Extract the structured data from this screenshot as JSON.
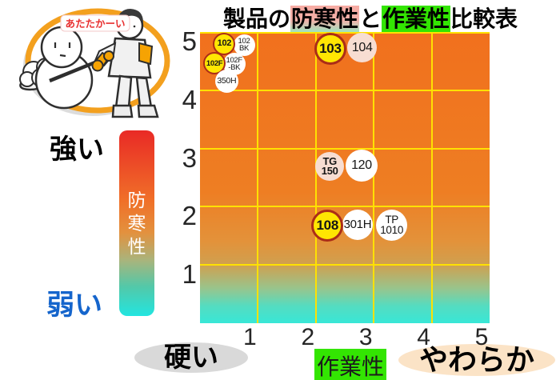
{
  "title": {
    "prefix": "製品の",
    "term1": "防寒性",
    "connector": "と",
    "term2": "作業性",
    "suffix": "比較表"
  },
  "mascot": {
    "speech": "あたたかーい"
  },
  "y_axis": {
    "strong": "強い",
    "weak": "弱い",
    "bar_label": "防寒性",
    "bar_label_chars": [
      "防",
      "寒",
      "性"
    ]
  },
  "x_axis": {
    "hard": "硬い",
    "label": "作業性",
    "soft": "やわらか"
  },
  "colors": {
    "grid": "#ffe102",
    "plot_top": "#f1701d",
    "plot_bottom": "#38e7d7",
    "bar_top": "#e92a26",
    "bar_bottom": "#22e5e0",
    "term1_highlight_top": "#f7aba3",
    "term1_highlight_bottom": "#9fe3c0",
    "term2_highlight": "#33e502",
    "weak_text": "#1565cc",
    "yellow_point": "#ffe602",
    "yellow_point_border": "#ab2d17",
    "pink_point": "#f7ddd2",
    "white_point": "#ffffff",
    "hard_ellipse": "#d9d9d9",
    "soft_ellipse": "#fbe3c6",
    "mascot_ring": "#f3a01e",
    "mascot_speech_text": "#e83030"
  },
  "chart_data": {
    "type": "scatter",
    "title": "製品の防寒性と作業性比較表",
    "xlabel": "作業性",
    "ylabel": "防寒性",
    "x_low_label": "硬い",
    "x_high_label": "やわらか",
    "y_low_label": "弱い",
    "y_high_label": "強い",
    "xlim": [
      0,
      5
    ],
    "ylim": [
      0,
      5
    ],
    "x_ticks": [
      "1",
      "2",
      "3",
      "4",
      "5"
    ],
    "y_ticks": [
      "5",
      "4",
      "3",
      "2",
      "1"
    ],
    "grid": true,
    "points": [
      {
        "label": "102BK",
        "lines": [
          "102",
          "BK"
        ],
        "x": 0.76,
        "y": 4.78,
        "r": 13.5,
        "style": "white",
        "bold": false,
        "fs": 9.5
      },
      {
        "label": "102",
        "lines": [
          "102"
        ],
        "x": 0.42,
        "y": 4.8,
        "r": 14,
        "style": "yellow",
        "bold": true,
        "fs": 11
      },
      {
        "label": "102F-BK",
        "lines": [
          "102F",
          "-BK"
        ],
        "x": 0.59,
        "y": 4.45,
        "r": 14,
        "style": "white",
        "bold": false,
        "fs": 9.5
      },
      {
        "label": "102F",
        "lines": [
          "102F"
        ],
        "x": 0.25,
        "y": 4.46,
        "r": 14,
        "style": "yellow",
        "bold": true,
        "fs": 9.5
      },
      {
        "label": "350H",
        "lines": [
          "350H"
        ],
        "x": 0.46,
        "y": 4.15,
        "r": 14.5,
        "style": "white",
        "bold": false,
        "fs": 10.5
      },
      {
        "label": "104",
        "lines": [
          "104"
        ],
        "x": 2.8,
        "y": 4.73,
        "r": 18.5,
        "style": "pink",
        "bold": false,
        "fs": 16
      },
      {
        "label": "103",
        "lines": [
          "103"
        ],
        "x": 2.25,
        "y": 4.71,
        "r": 20,
        "style": "yellow",
        "bold": true,
        "fs": 17
      },
      {
        "label": "TG150",
        "lines": [
          "TG",
          "150"
        ],
        "x": 2.24,
        "y": 2.69,
        "r": 18,
        "style": "pink",
        "bold": true,
        "fs": 13
      },
      {
        "label": "120",
        "lines": [
          "120"
        ],
        "x": 2.79,
        "y": 2.71,
        "r": 20,
        "style": "white",
        "bold": false,
        "fs": 16
      },
      {
        "label": "TP1010",
        "lines": [
          "TP",
          "1010"
        ],
        "x": 3.31,
        "y": 1.68,
        "r": 19.5,
        "style": "white",
        "bold": false,
        "fs": 13.5
      },
      {
        "label": "301H",
        "lines": [
          "301H"
        ],
        "x": 2.72,
        "y": 1.69,
        "r": 19,
        "style": "white",
        "bold": false,
        "fs": 15
      },
      {
        "label": "108",
        "lines": [
          "108"
        ],
        "x": 2.2,
        "y": 1.68,
        "r": 20,
        "style": "yellow",
        "bold": true,
        "fs": 17
      }
    ]
  }
}
